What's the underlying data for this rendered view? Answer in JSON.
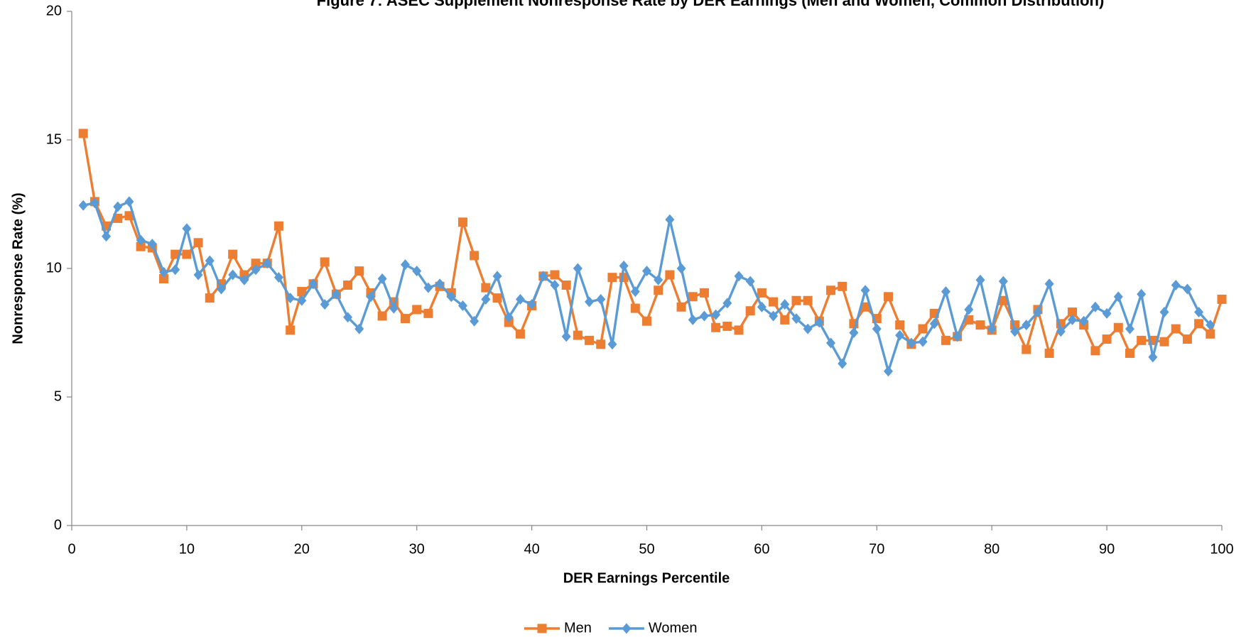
{
  "chart_data": {
    "type": "line",
    "title": "Figure 7: ASEC Supplement Nonresponse Rate by DER Earnings (Men and Women, Common Distribution)",
    "x_label": "DER Earnings Percentile",
    "y_label": "Nonresponse Rate (%)",
    "xlim": [
      0,
      100
    ],
    "xticks": [
      0,
      10,
      20,
      30,
      40,
      50,
      60,
      70,
      80,
      90,
      100
    ],
    "ylim": [
      0,
      20
    ],
    "yticks": [
      0,
      5,
      10,
      15,
      20
    ],
    "grid": false,
    "legend": "bottom",
    "x": [
      1,
      2,
      3,
      4,
      5,
      6,
      7,
      8,
      9,
      10,
      11,
      12,
      13,
      14,
      15,
      16,
      17,
      18,
      19,
      20,
      21,
      22,
      23,
      24,
      25,
      26,
      27,
      28,
      29,
      30,
      31,
      32,
      33,
      34,
      35,
      36,
      37,
      38,
      39,
      40,
      41,
      42,
      43,
      44,
      45,
      46,
      47,
      48,
      49,
      50,
      51,
      52,
      53,
      54,
      55,
      56,
      57,
      58,
      59,
      60,
      61,
      62,
      63,
      64,
      65,
      66,
      67,
      68,
      69,
      70,
      71,
      72,
      73,
      74,
      75,
      76,
      77,
      78,
      79,
      80,
      81,
      82,
      83,
      84,
      85,
      86,
      87,
      88,
      89,
      90,
      91,
      92,
      93,
      94,
      95,
      96,
      97,
      98,
      99,
      100
    ],
    "series": [
      {
        "name": "Men",
        "color": "#ed7d31",
        "marker": "square",
        "values": [
          15.25,
          12.6,
          11.65,
          11.95,
          12.05,
          10.85,
          10.8,
          9.6,
          10.55,
          10.55,
          11.0,
          8.85,
          9.4,
          10.55,
          9.75,
          10.2,
          10.2,
          11.65,
          7.6,
          9.1,
          9.4,
          10.25,
          9.0,
          9.35,
          9.9,
          9.05,
          8.15,
          8.7,
          8.05,
          8.4,
          8.25,
          9.3,
          9.05,
          11.8,
          10.5,
          9.25,
          8.85,
          7.9,
          7.45,
          8.55,
          9.7,
          9.75,
          9.35,
          7.4,
          7.2,
          7.05,
          9.65,
          9.65,
          8.45,
          7.95,
          9.15,
          9.75,
          8.5,
          8.9,
          9.05,
          7.7,
          7.75,
          7.6,
          8.35,
          9.05,
          8.7,
          8.0,
          8.75,
          8.75,
          7.95,
          9.15,
          9.3,
          7.85,
          8.5,
          8.05,
          8.9,
          7.8,
          7.05,
          7.65,
          8.25,
          7.2,
          7.35,
          8.0,
          7.8,
          7.6,
          8.75,
          7.8,
          6.85,
          8.4,
          6.7,
          7.85,
          8.3,
          7.8,
          6.8,
          7.25,
          7.7,
          6.7,
          7.2,
          7.2,
          7.15,
          7.65,
          7.25,
          7.85,
          7.45,
          8.8
        ]
      },
      {
        "name": "Women",
        "color": "#5b9bd5",
        "marker": "diamond",
        "values": [
          12.45,
          12.55,
          11.25,
          12.4,
          12.6,
          11.1,
          10.95,
          9.85,
          9.95,
          11.55,
          9.75,
          10.3,
          9.2,
          9.75,
          9.55,
          9.95,
          10.2,
          9.65,
          8.85,
          8.75,
          9.4,
          8.6,
          9.0,
          8.1,
          7.65,
          8.9,
          9.6,
          8.45,
          10.15,
          9.9,
          9.25,
          9.4,
          8.9,
          8.55,
          7.95,
          8.8,
          9.7,
          8.1,
          8.8,
          8.6,
          9.7,
          9.35,
          7.35,
          10.0,
          8.7,
          8.8,
          7.05,
          10.1,
          9.1,
          9.9,
          9.55,
          11.9,
          10.0,
          8.0,
          8.15,
          8.2,
          8.65,
          9.7,
          9.5,
          8.5,
          8.15,
          8.6,
          8.05,
          7.65,
          7.9,
          7.1,
          6.3,
          7.5,
          9.15,
          7.65,
          6.0,
          7.4,
          7.1,
          7.15,
          7.85,
          9.1,
          7.35,
          8.4,
          9.55,
          7.65,
          9.5,
          7.55,
          7.8,
          8.3,
          9.4,
          7.55,
          8.0,
          7.95,
          8.5,
          8.25,
          8.9,
          7.65,
          9.0,
          6.55,
          8.3,
          9.35,
          9.2,
          8.3,
          7.8,
          null
        ]
      }
    ]
  }
}
